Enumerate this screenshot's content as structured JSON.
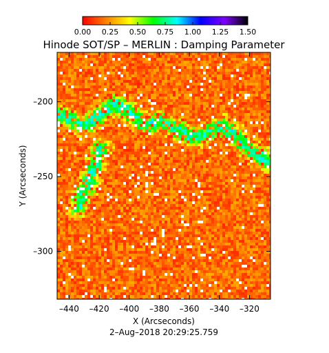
{
  "chart_data": {
    "type": "heatmap",
    "title": "Hinode SOT/SP – MERLIN : Damping Parameter",
    "xlabel": "X (Arcseconds)",
    "ylabel": "Y (Arcseconds)",
    "footer": "2–Aug–2018 20:29:25.759",
    "xlim": [
      -448,
      -306
    ],
    "ylim": [
      -332,
      -167
    ],
    "x_ticks": [
      -440,
      -420,
      -400,
      -380,
      -360,
      -340,
      -320
    ],
    "y_ticks": [
      -200,
      -250,
      -300
    ],
    "x_tick_labels": [
      "–440",
      "–420",
      "–400",
      "–380",
      "–360",
      "–340",
      "–320"
    ],
    "y_tick_labels": [
      "–200",
      "–250",
      "–300"
    ],
    "colorbar": {
      "range": [
        0,
        1.5
      ],
      "ticks": [
        0,
        0.25,
        0.5,
        0.75,
        1.0,
        1.25,
        1.5
      ],
      "tick_labels": [
        "0.00",
        "0.25",
        "0.50",
        "0.75",
        "1.00",
        "1.25",
        "1.50"
      ],
      "colors": [
        "#ff0000",
        "#ff8000",
        "#ffff00",
        "#00ff00",
        "#00ffff",
        "#0000ff",
        "#8000ff",
        "#000000"
      ],
      "location": "top"
    },
    "background_level": 0.18,
    "feature_level": 0.6,
    "feature_description": "network of elevated damping values along a band from about (-445,-210) to (-305,-240) with a branch down to (-430,-272)"
  }
}
